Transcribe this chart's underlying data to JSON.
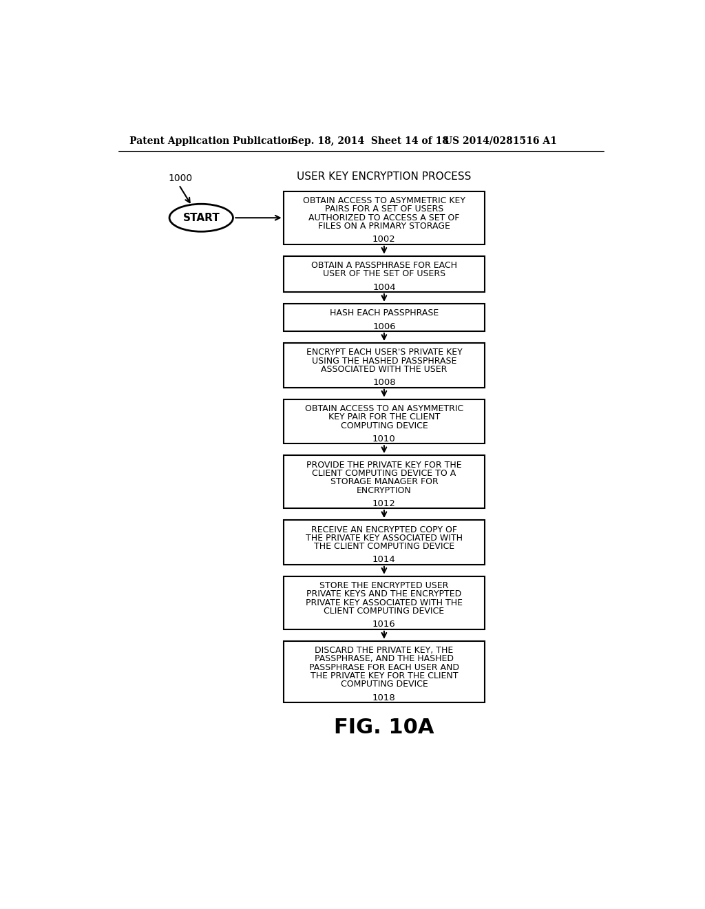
{
  "header_left": "Patent Application Publication",
  "header_mid": "Sep. 18, 2014  Sheet 14 of 18",
  "header_right": "US 2014/0281516 A1",
  "diagram_label": "1000",
  "process_title": "USER KEY ENCRYPTION PROCESS",
  "start_label": "START",
  "figure_label": "FIG. 10A",
  "boxes": [
    {
      "lines": [
        "OBTAIN ACCESS TO ASYMMETRIC KEY",
        "PAIRS FOR A SET OF USERS",
        "AUTHORIZED TO ACCESS A SET OF",
        "FILES ON A PRIMARY STORAGE"
      ],
      "label": "1002",
      "n_text_lines": 4
    },
    {
      "lines": [
        "OBTAIN A PASSPHRASE FOR EACH",
        "USER OF THE SET OF USERS"
      ],
      "label": "1004",
      "n_text_lines": 2
    },
    {
      "lines": [
        "HASH EACH PASSPHRASE"
      ],
      "label": "1006",
      "n_text_lines": 1
    },
    {
      "lines": [
        "ENCRYPT EACH USER'S PRIVATE KEY",
        "USING THE HASHED PASSPHRASE",
        "ASSOCIATED WITH THE USER"
      ],
      "label": "1008",
      "n_text_lines": 3
    },
    {
      "lines": [
        "OBTAIN ACCESS TO AN ASYMMETRIC",
        "KEY PAIR FOR THE CLIENT",
        "COMPUTING DEVICE"
      ],
      "label": "1010",
      "n_text_lines": 3
    },
    {
      "lines": [
        "PROVIDE THE PRIVATE KEY FOR THE",
        "CLIENT COMPUTING DEVICE TO A",
        "STORAGE MANAGER FOR",
        "ENCRYPTION"
      ],
      "label": "1012",
      "n_text_lines": 4
    },
    {
      "lines": [
        "RECEIVE AN ENCRYPTED COPY OF",
        "THE PRIVATE KEY ASSOCIATED WITH",
        "THE CLIENT COMPUTING DEVICE"
      ],
      "label": "1014",
      "n_text_lines": 3
    },
    {
      "lines": [
        "STORE THE ENCRYPTED USER",
        "PRIVATE KEYS AND THE ENCRYPTED",
        "PRIVATE KEY ASSOCIATED WITH THE",
        "CLIENT COMPUTING DEVICE"
      ],
      "label": "1016",
      "n_text_lines": 4
    },
    {
      "lines": [
        "DISCARD THE PRIVATE KEY, THE",
        "PASSPHRASE, AND THE HASHED",
        "PASSPHRASE FOR EACH USER AND",
        "THE PRIVATE KEY FOR THE CLIENT",
        "COMPUTING DEVICE"
      ],
      "label": "1018",
      "n_text_lines": 5
    }
  ],
  "bg_color": "#ffffff",
  "box_color": "#ffffff",
  "box_edge_color": "#000000",
  "text_color": "#000000"
}
